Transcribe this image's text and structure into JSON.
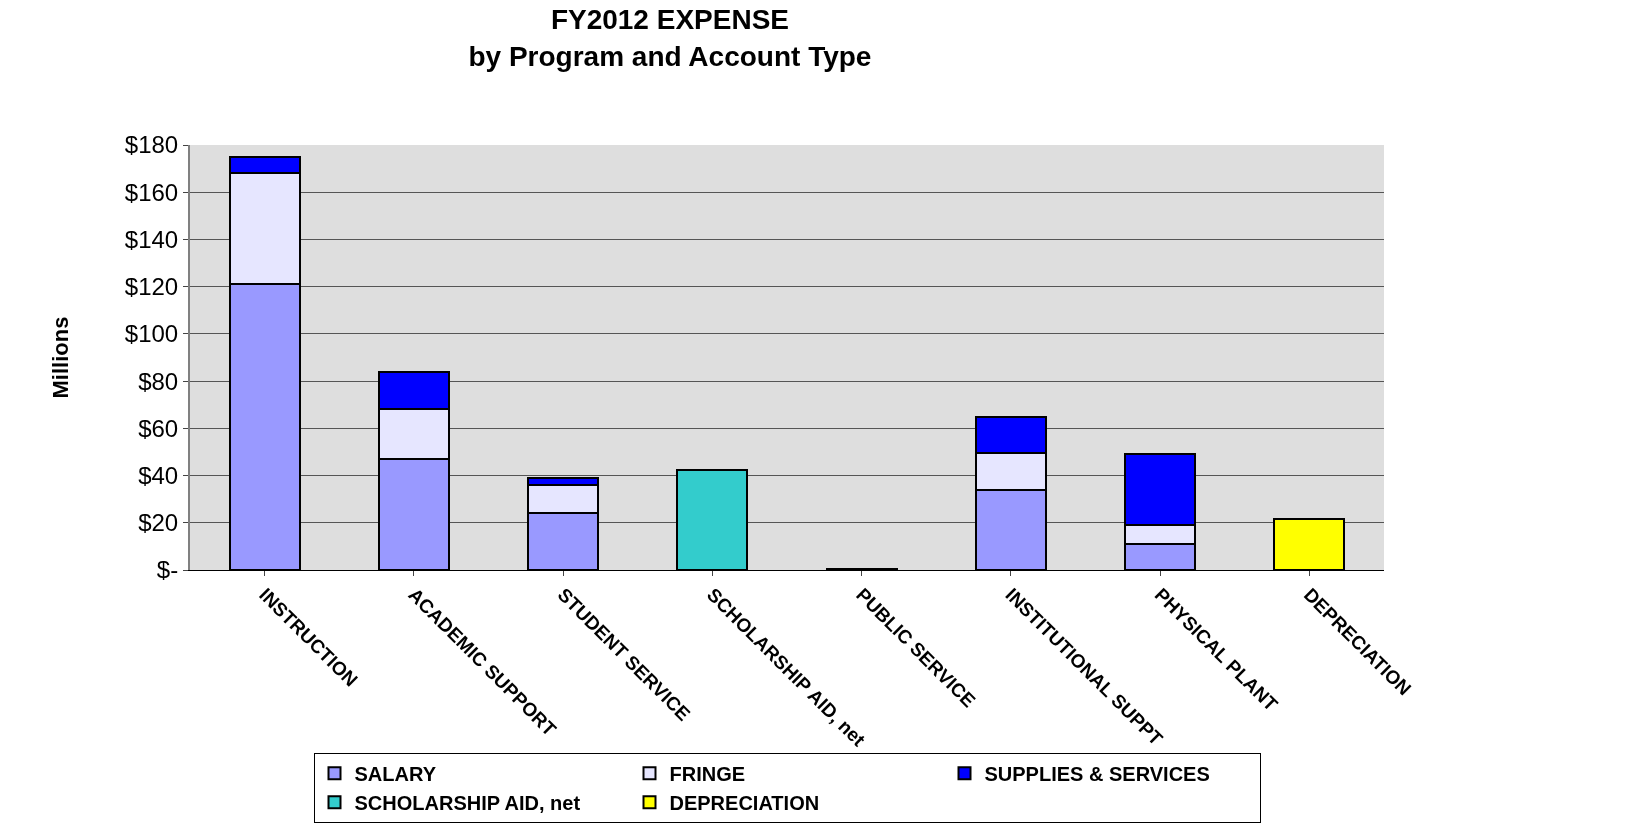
{
  "chart_data": {
    "type": "bar",
    "title": "FY2012 EXPENSE\nby Program and Account Type",
    "ylabel": "Millions",
    "categories": [
      "INSTRUCTION",
      "ACADEMIC SUPPORT",
      "STUDENT SERVICE",
      "SCHOLARSHIP AID, net",
      "PUBLIC SERVICE",
      "INSTITUTIONAL SUPPT",
      "PHYSICAL PLANT",
      "DEPRECIATION"
    ],
    "stacked": true,
    "series": [
      {
        "name": "SALARY",
        "color": "#9999ff",
        "values": [
          121,
          47,
          24,
          null,
          0.5,
          34,
          11,
          null
        ]
      },
      {
        "name": "FRINGE",
        "color": "#e6e6ff",
        "values": [
          47,
          21,
          12,
          null,
          null,
          15.5,
          8,
          null
        ]
      },
      {
        "name": "SUPPLIES & SERVICES",
        "color": "#0000ff",
        "values": [
          7,
          16,
          3,
          null,
          null,
          15.5,
          30,
          null
        ]
      },
      {
        "name": "SCHOLARSHIP AID, net",
        "color": "#33cccc",
        "values": [
          null,
          null,
          null,
          42.5,
          null,
          null,
          null,
          null
        ]
      },
      {
        "name": "DEPRECIATION",
        "color": "#ffff00",
        "values": [
          null,
          null,
          null,
          null,
          null,
          null,
          null,
          21.5
        ]
      }
    ],
    "ylim": [
      0,
      180
    ],
    "yticks": [
      {
        "value": 0,
        "label": "$-"
      },
      {
        "value": 20,
        "label": "$20"
      },
      {
        "value": 40,
        "label": "$40"
      },
      {
        "value": 60,
        "label": "$60"
      },
      {
        "value": 80,
        "label": "$80"
      },
      {
        "value": 100,
        "label": "$100"
      },
      {
        "value": 120,
        "label": "$120"
      },
      {
        "value": 140,
        "label": "$140"
      },
      {
        "value": 160,
        "label": "$160"
      },
      {
        "value": 180,
        "label": "$180"
      }
    ],
    "grid": "y",
    "legend": "bottom"
  }
}
